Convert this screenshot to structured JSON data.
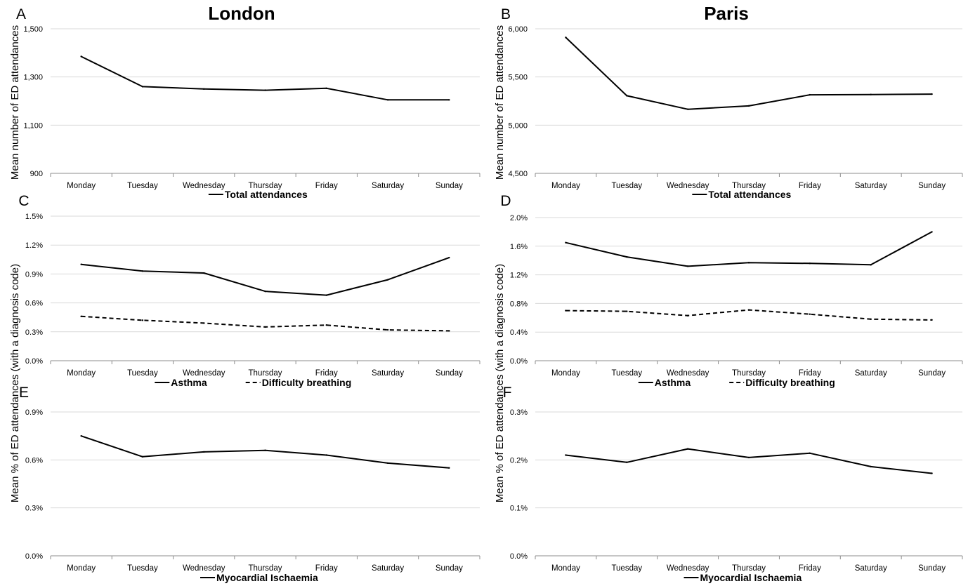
{
  "titles": {
    "left": "London",
    "right": "Paris"
  },
  "y_labels": {
    "left_top": "Mean number of ED attendances",
    "right_top": "Mean number of ED attendances",
    "left_bottom": "Mean % of ED attendances (with a diagnosis code)",
    "right_bottom": "Mean % of ED attendances (with a diagnosis code)"
  },
  "chart_data": [
    {
      "panel": "A",
      "type": "line",
      "categories": [
        "Monday",
        "Tuesday",
        "Wednesday",
        "Thursday",
        "Friday",
        "Saturday",
        "Sunday"
      ],
      "series": [
        {
          "name": "Total attendances",
          "style": "solid",
          "values": [
            1385,
            1260,
            1250,
            1245,
            1253,
            1205,
            1205
          ]
        }
      ],
      "ylim": [
        900,
        1500
      ],
      "yticks": [
        900,
        1100,
        1300,
        1500
      ],
      "ytick_labels": [
        "900",
        "1,100",
        "1,300",
        "1,500"
      ],
      "legend": "bottom",
      "grid": true
    },
    {
      "panel": "B",
      "type": "line",
      "categories": [
        "Monday",
        "Tuesday",
        "Wednesday",
        "Thursday",
        "Friday",
        "Saturday",
        "Sunday"
      ],
      "series": [
        {
          "name": "Total attendances",
          "style": "solid",
          "values": [
            5910,
            5305,
            5165,
            5200,
            5315,
            5318,
            5322
          ]
        }
      ],
      "ylim": [
        4500,
        6000
      ],
      "yticks": [
        4500,
        5000,
        5500,
        6000
      ],
      "ytick_labels": [
        "4,500",
        "5,000",
        "5,500",
        "6,000"
      ],
      "legend": "bottom",
      "grid": true
    },
    {
      "panel": "C",
      "type": "line",
      "categories": [
        "Monday",
        "Tuesday",
        "Wednesday",
        "Thursday",
        "Friday",
        "Saturday",
        "Sunday"
      ],
      "series": [
        {
          "name": "Asthma",
          "style": "solid",
          "values": [
            0.01,
            0.0093,
            0.0091,
            0.0072,
            0.0068,
            0.0084,
            0.0107
          ]
        },
        {
          "name": "Difficulty breathing",
          "style": "dashed",
          "values": [
            0.0046,
            0.0042,
            0.0039,
            0.0035,
            0.0037,
            0.0032,
            0.0031
          ]
        }
      ],
      "ylim": [
        0,
        0.015
      ],
      "yticks": [
        0,
        0.003,
        0.006,
        0.009,
        0.012,
        0.015
      ],
      "ytick_labels": [
        "0.0%",
        "0.3%",
        "0.6%",
        "0.9%",
        "1.2%",
        "1.5%"
      ],
      "legend": "bottom",
      "grid": true
    },
    {
      "panel": "D",
      "type": "line",
      "categories": [
        "Monday",
        "Tuesday",
        "Wednesday",
        "Thursday",
        "Friday",
        "Saturday",
        "Sunday"
      ],
      "series": [
        {
          "name": "Asthma",
          "style": "solid",
          "values": [
            0.0165,
            0.0145,
            0.0132,
            0.0137,
            0.0136,
            0.0134,
            0.018
          ]
        },
        {
          "name": "Difficulty breathing",
          "style": "dashed",
          "values": [
            0.007,
            0.0069,
            0.0063,
            0.0071,
            0.0065,
            0.0058,
            0.0057
          ]
        }
      ],
      "ylim": [
        0,
        0.02
      ],
      "yticks": [
        0,
        0.004,
        0.008,
        0.012,
        0.016,
        0.02
      ],
      "ytick_labels": [
        "0.0%",
        "0.4%",
        "0.8%",
        "1.2%",
        "1.6%",
        "2.0%"
      ],
      "legend": "bottom",
      "grid": true
    },
    {
      "panel": "E",
      "type": "line",
      "categories": [
        "Monday",
        "Tuesday",
        "Wednesday",
        "Thursday",
        "Friday",
        "Saturday",
        "Sunday"
      ],
      "series": [
        {
          "name": "Myocardial Ischaemia",
          "style": "solid",
          "values": [
            0.0075,
            0.0062,
            0.0065,
            0.0066,
            0.0063,
            0.0058,
            0.0055
          ]
        }
      ],
      "ylim": [
        0,
        0.009
      ],
      "yticks": [
        0,
        0.003,
        0.006,
        0.009
      ],
      "ytick_labels": [
        "0.0%",
        "0.3%",
        "0.6%",
        "0.9%"
      ],
      "legend": "bottom",
      "grid": true
    },
    {
      "panel": "F",
      "type": "line",
      "categories": [
        "Monday",
        "Tuesday",
        "Wednesday",
        "Thursday",
        "Friday",
        "Saturday",
        "Sunday"
      ],
      "series": [
        {
          "name": "Myocardial Ischaemia",
          "style": "solid",
          "values": [
            0.0021,
            0.00195,
            0.00223,
            0.00205,
            0.00214,
            0.00186,
            0.00172
          ]
        }
      ],
      "ylim": [
        0,
        0.003
      ],
      "yticks": [
        0,
        0.001,
        0.002,
        0.003
      ],
      "ytick_labels": [
        "0.0%",
        "0.1%",
        "0.2%",
        "0.3%"
      ],
      "legend": "bottom",
      "grid": true
    }
  ]
}
